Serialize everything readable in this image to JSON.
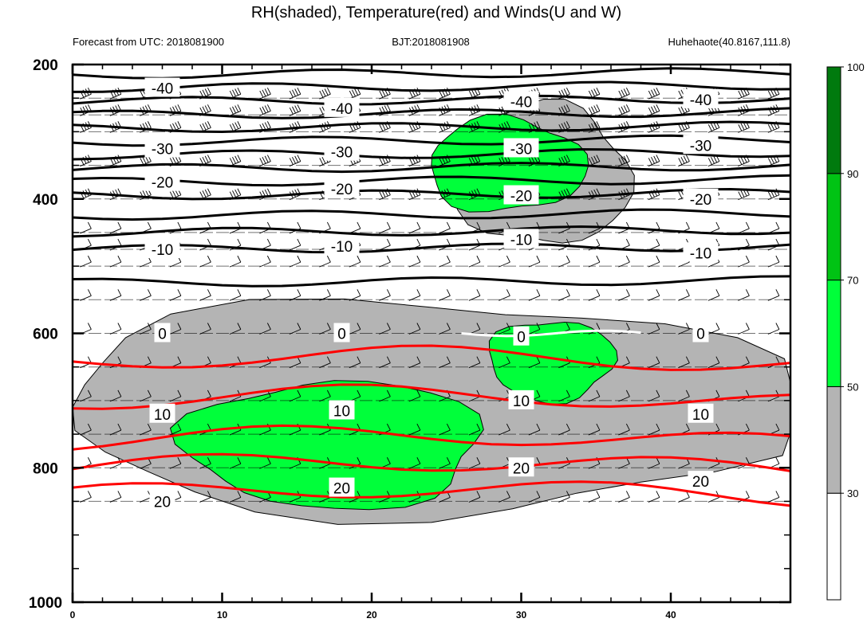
{
  "chart_data": {
    "type": "heatmap",
    "title": "RH(shaded), Temperature(red) and Winds(U and W)",
    "subtitle_left": "Forecast from UTC: 2018081900",
    "subtitle_center": "BJT:2018081908",
    "subtitle_right": "Huhehaote(40.8167,111.8)",
    "x_ticks": [
      0,
      10,
      20,
      30,
      40
    ],
    "xlim": [
      0,
      48
    ],
    "y_ticks": [
      200,
      400,
      600,
      800,
      1000
    ],
    "ylim": [
      200,
      1000
    ],
    "y_inverted": true,
    "colorbar": {
      "levels": [
        30,
        50,
        70,
        90,
        100
      ],
      "colors": [
        "#ffffff",
        "#b4b4b4",
        "#00ff3a",
        "#00c314",
        "#007a0e"
      ]
    },
    "temperature_contours": [
      {
        "value": -40,
        "label": "-40",
        "color": "#000000",
        "y": [
          235,
          265,
          255,
          252
        ]
      },
      {
        "value": -30,
        "label": "-30",
        "color": "#000000",
        "y": [
          325,
          330,
          325,
          320
        ]
      },
      {
        "value": -20,
        "label": "-20",
        "color": "#000000",
        "y": [
          375,
          385,
          395,
          400
        ]
      },
      {
        "value": -10,
        "label": "-10",
        "color": "#000000",
        "y": [
          475,
          470,
          460,
          480
        ]
      },
      {
        "value": 0,
        "label": "0",
        "color": "#ffffff",
        "y": [
          600,
          600,
          605,
          600
        ]
      },
      {
        "value": 10,
        "label": "10",
        "color": "#ff0000",
        "y": [
          720,
          715,
          700,
          720
        ]
      },
      {
        "value": 20,
        "label": "20",
        "color": "#ff0000",
        "y": [
          850,
          830,
          800,
          820
        ]
      }
    ],
    "black_isotherm_levels": [
      215,
      235,
      255,
      275,
      295,
      315,
      335,
      355,
      375,
      395,
      425,
      450,
      475,
      525
    ],
    "red_isotherm_levels": [
      642,
      700,
      760,
      800,
      840
    ],
    "rh_regions": [
      {
        "level": 50,
        "x": [
          26,
          37
        ],
        "y": [
          260,
          470
        ]
      },
      {
        "level": 70,
        "x": [
          24,
          34
        ],
        "y": [
          280,
          420
        ]
      },
      {
        "level": 50,
        "x": [
          0,
          48
        ],
        "y": [
          550,
          870
        ]
      },
      {
        "level": 70,
        "x": [
          28,
          36
        ],
        "y": [
          580,
          700
        ]
      },
      {
        "level": 70,
        "x": [
          8,
          27
        ],
        "y": [
          670,
          860
        ]
      }
    ],
    "wind_levels": [
      250,
      275,
      300,
      350,
      400,
      450,
      475,
      500,
      550,
      600,
      650,
      700,
      750,
      800,
      850
    ],
    "wind_x_step": 2
  }
}
